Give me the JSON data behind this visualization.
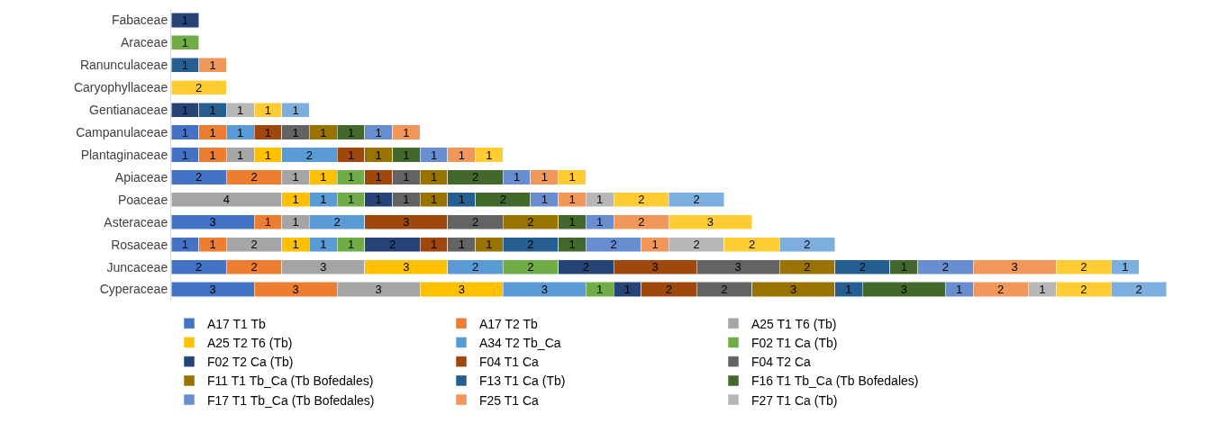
{
  "chart_data": {
    "type": "bar",
    "orientation": "horizontal",
    "stacked": true,
    "data_labels": true,
    "grid": false,
    "legend": "bottom",
    "categories": [
      "Fabaceae",
      "Araceae",
      "Ranunculaceae",
      "Caryophyllaceae",
      "Gentianaceae",
      "Campanulaceae",
      "Plantaginaceae",
      "Apiaceae",
      "Poaceae",
      "Asteraceae",
      "Rosaceae",
      "Juncaceae",
      "Cyperaceae"
    ],
    "series": [
      {
        "name": "A17 T1 Tb",
        "color": "#4472c4",
        "values": [
          null,
          null,
          null,
          null,
          null,
          1,
          1,
          2,
          null,
          3,
          1,
          2,
          3
        ]
      },
      {
        "name": "A17 T2 Tb",
        "color": "#ed7d31",
        "values": [
          null,
          null,
          null,
          null,
          null,
          1,
          1,
          2,
          null,
          1,
          1,
          2,
          3
        ]
      },
      {
        "name": "A25 T1 T6 (Tb)",
        "color": "#a5a5a5",
        "values": [
          null,
          null,
          null,
          null,
          null,
          null,
          1,
          1,
          4,
          1,
          2,
          3,
          3
        ]
      },
      {
        "name": "A25 T2 T6 (Tb)",
        "color": "#ffc000",
        "values": [
          null,
          null,
          null,
          null,
          null,
          null,
          1,
          1,
          1,
          null,
          1,
          3,
          3
        ]
      },
      {
        "name": "A34 T2 Tb_Ca",
        "color": "#5b9bd5",
        "values": [
          null,
          null,
          null,
          null,
          null,
          1,
          2,
          null,
          1,
          2,
          1,
          2,
          3
        ]
      },
      {
        "name": "F02 T1 Ca (Tb)",
        "color": "#70ad47",
        "values": [
          null,
          1,
          null,
          null,
          null,
          null,
          null,
          1,
          1,
          null,
          1,
          2,
          1
        ]
      },
      {
        "name": "F02 T2 Ca (Tb)",
        "color": "#264478",
        "values": [
          1,
          null,
          null,
          null,
          1,
          null,
          null,
          null,
          1,
          null,
          2,
          2,
          1
        ]
      },
      {
        "name": "F04 T1 Ca",
        "color": "#9e480e",
        "values": [
          null,
          null,
          null,
          null,
          null,
          1,
          1,
          1,
          null,
          3,
          1,
          3,
          2
        ]
      },
      {
        "name": "F04 T2 Ca",
        "color": "#636363",
        "values": [
          null,
          null,
          null,
          null,
          null,
          1,
          null,
          1,
          1,
          2,
          1,
          3,
          2
        ]
      },
      {
        "name": "F11 T1 Tb_Ca (Tb Bofedales)",
        "color": "#997300",
        "values": [
          null,
          null,
          null,
          null,
          null,
          1,
          1,
          1,
          1,
          2,
          1,
          2,
          3
        ]
      },
      {
        "name": "F13 T1 Ca (Tb)",
        "color": "#255e91",
        "values": [
          null,
          null,
          1,
          null,
          1,
          null,
          null,
          null,
          1,
          null,
          2,
          2,
          1
        ]
      },
      {
        "name": "F16 T1 Tb_Ca (Tb Bofedales)",
        "color": "#43682b",
        "values": [
          null,
          null,
          null,
          null,
          null,
          1,
          1,
          2,
          2,
          1,
          1,
          1,
          3
        ]
      },
      {
        "name": "F17 T1 Tb_Ca (Tb Bofedales)",
        "color": "#698ed0",
        "values": [
          null,
          null,
          null,
          null,
          null,
          1,
          1,
          1,
          1,
          1,
          2,
          2,
          1
        ]
      },
      {
        "name": "F25 T1 Ca",
        "color": "#f1975a",
        "values": [
          null,
          null,
          1,
          null,
          null,
          1,
          1,
          1,
          1,
          2,
          1,
          3,
          2
        ]
      },
      {
        "name": "F27 T1 Ca (Tb)",
        "color": "#b7b7b7",
        "values": [
          null,
          null,
          null,
          null,
          1,
          null,
          null,
          null,
          1,
          null,
          2,
          null,
          1
        ]
      },
      {
        "color": "#ffcd33",
        "values": [
          null,
          null,
          null,
          2,
          1,
          null,
          1,
          1,
          2,
          3,
          2,
          2,
          2
        ]
      },
      {
        "color": "#7cafdd",
        "values": [
          null,
          null,
          null,
          null,
          1,
          null,
          null,
          null,
          2,
          null,
          2,
          1,
          2
        ]
      }
    ]
  }
}
